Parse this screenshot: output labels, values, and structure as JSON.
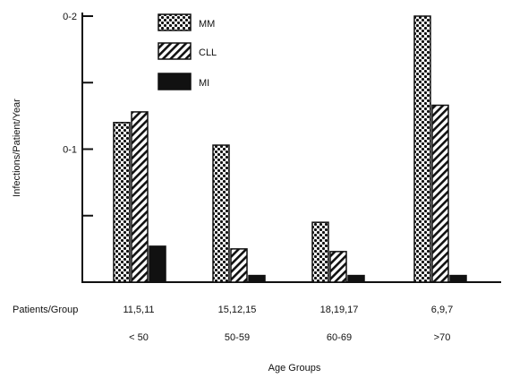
{
  "chart_data": {
    "type": "bar",
    "ylabel": "Infections/Patient/Year",
    "xlabel": "Age Groups",
    "categories": [
      "< 50",
      "50-59",
      "60-69",
      ">70"
    ],
    "patients_row_label": "Patients/Group",
    "patients_per_group": [
      "11,5,11",
      "15,12,15",
      "18,19,17",
      "6,9,7"
    ],
    "yticks": [
      {
        "value": 0.1,
        "label": "0-1"
      },
      {
        "value": 0.2,
        "label": "0-2"
      }
    ],
    "yminor_ticks": [
      0.05,
      0.15
    ],
    "ylim": [
      0,
      0.2
    ],
    "grid": false,
    "legend_position": "top-center",
    "series": [
      {
        "name": "MM",
        "pattern": "dots",
        "values": [
          0.12,
          0.103,
          0.045,
          0.2
        ]
      },
      {
        "name": "CLL",
        "pattern": "hatch",
        "values": [
          0.128,
          0.025,
          0.023,
          0.133
        ]
      },
      {
        "name": "MI",
        "pattern": "solid",
        "values": [
          0.027,
          0.005,
          0.005,
          0.005
        ]
      }
    ]
  }
}
